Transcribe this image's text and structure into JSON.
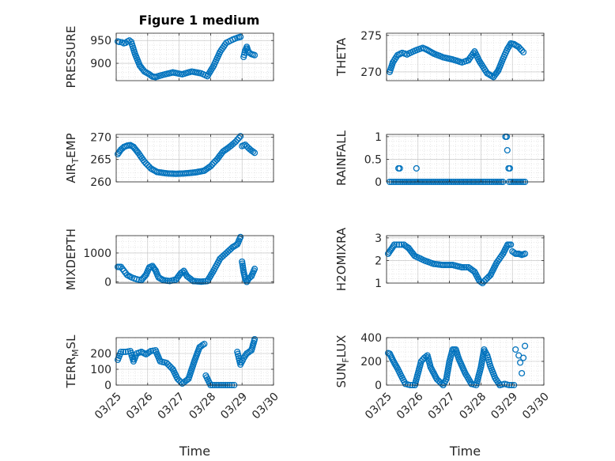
{
  "figure": {
    "title": "Figure 1 medium",
    "marker_color": "#0072BD"
  },
  "chart_data": [
    {
      "type": "scatter",
      "ylabel": "PRESSURE",
      "xlabel": "",
      "xlim": [
        0,
        5
      ],
      "ylim": [
        862,
        966
      ],
      "yticks": [
        900,
        950
      ],
      "xtick_labels": [
        "03/25",
        "03/26",
        "03/27",
        "03/28",
        "03/29",
        "03/30"
      ],
      "show_xtick_labels": false,
      "grid": true,
      "segments": [
        {
          "x": [
            0.05,
            0.1,
            0.18,
            0.24,
            0.3,
            0.36,
            0.42,
            0.48
          ],
          "y": [
            948,
            947,
            946,
            944,
            945,
            948,
            950,
            947
          ]
        },
        {
          "x": [
            0.5,
            0.6,
            0.75,
            0.9,
            1.05,
            1.15,
            1.25
          ],
          "y": [
            942,
            920,
            895,
            882,
            876,
            871,
            870
          ]
        },
        {
          "x": [
            1.25,
            1.5,
            1.8,
            2.1,
            2.4,
            2.7,
            2.9
          ],
          "y": [
            870,
            875,
            880,
            876,
            882,
            878,
            872
          ]
        },
        {
          "x": [
            2.9,
            3.1,
            3.3,
            3.5,
            3.7,
            3.85,
            3.95
          ],
          "y": [
            872,
            895,
            925,
            945,
            952,
            956,
            958
          ]
        },
        {
          "x": [
            4.05,
            4.1,
            4.15,
            4.2,
            4.3,
            4.4
          ],
          "y": [
            914,
            928,
            936,
            925,
            920,
            918
          ]
        }
      ]
    },
    {
      "type": "scatter",
      "ylabel": "THETA",
      "xlabel": "",
      "xlim": [
        0,
        5
      ],
      "ylim": [
        268.8,
        275.3
      ],
      "yticks": [
        270,
        275
      ],
      "xtick_labels": [
        "03/25",
        "03/26",
        "03/27",
        "03/28",
        "03/29",
        "03/30"
      ],
      "show_xtick_labels": false,
      "grid": true,
      "segments": [
        {
          "x": [
            0.1,
            0.2,
            0.35,
            0.5,
            0.65
          ],
          "y": [
            270.0,
            271.3,
            272.3,
            272.6,
            272.4
          ]
        },
        {
          "x": [
            0.65,
            0.9,
            1.15,
            1.3,
            1.5
          ],
          "y": [
            272.4,
            272.9,
            273.3,
            273.0,
            272.5
          ]
        },
        {
          "x": [
            1.5,
            1.8,
            2.1,
            2.4,
            2.6
          ],
          "y": [
            272.5,
            272.0,
            271.7,
            271.3,
            271.6
          ]
        },
        {
          "x": [
            2.6,
            2.8,
            2.95,
            3.05,
            3.2,
            3.4,
            3.55
          ],
          "y": [
            271.6,
            272.8,
            271.5,
            270.8,
            269.8,
            269.3,
            270.2
          ]
        },
        {
          "x": [
            3.55,
            3.7,
            3.85,
            3.95,
            4.05,
            4.2,
            4.35
          ],
          "y": [
            270.2,
            271.8,
            273.2,
            273.9,
            273.8,
            273.4,
            272.7
          ]
        }
      ]
    },
    {
      "type": "scatter",
      "ylabel": "AIR_TEMP",
      "ylabel_main": "AIR",
      "ylabel_sub": "T",
      "ylabel_rest": "EMP",
      "xlabel": "",
      "xlim": [
        0,
        5
      ],
      "ylim": [
        260,
        270.6
      ],
      "yticks": [
        260,
        265,
        270
      ],
      "xtick_labels": [
        "03/25",
        "03/26",
        "03/27",
        "03/28",
        "03/29",
        "03/30"
      ],
      "show_xtick_labels": false,
      "grid": true,
      "segments": [
        {
          "x": [
            0.05,
            0.15,
            0.25,
            0.35,
            0.45,
            0.55
          ],
          "y": [
            266.2,
            267.2,
            267.8,
            268.1,
            268.2,
            267.8
          ]
        },
        {
          "x": [
            0.55,
            0.7,
            0.9,
            1.1,
            1.3
          ],
          "y": [
            267.8,
            266.5,
            264.5,
            263.0,
            262.2
          ]
        },
        {
          "x": [
            1.3,
            1.6,
            1.9,
            2.2,
            2.5,
            2.8
          ],
          "y": [
            262.2,
            261.9,
            261.8,
            261.9,
            262.1,
            262.5
          ]
        },
        {
          "x": [
            2.8,
            3.0,
            3.2,
            3.4,
            3.6,
            3.8,
            3.95
          ],
          "y": [
            262.5,
            263.5,
            265.0,
            266.8,
            267.8,
            269.0,
            270.2
          ]
        },
        {
          "x": [
            4.0,
            4.1,
            4.2,
            4.3,
            4.4
          ],
          "y": [
            268.0,
            268.3,
            267.6,
            267.0,
            266.5
          ]
        }
      ]
    },
    {
      "type": "scatter",
      "ylabel": "RAINFALL",
      "xlabel": "",
      "xlim": [
        0,
        5
      ],
      "ylim": [
        0,
        1.05
      ],
      "yticks": [
        0,
        0.5,
        1
      ],
      "xtick_labels": [
        "03/25",
        "03/26",
        "03/27",
        "03/28",
        "03/29",
        "03/30"
      ],
      "show_xtick_labels": false,
      "grid": true,
      "segments": [
        {
          "x": [
            0.1,
            0.5,
            1.0,
            1.5,
            2.0,
            2.5,
            3.0,
            3.4,
            3.7
          ],
          "y": [
            0,
            0,
            0,
            0,
            0,
            0,
            0,
            0,
            0
          ]
        },
        {
          "x": [
            3.9,
            4.15,
            4.4
          ],
          "y": [
            0,
            0,
            0
          ]
        }
      ],
      "points": [
        {
          "x": [
            0.38,
            0.42,
            0.95,
            3.78,
            3.82,
            3.84,
            3.88,
            3.92
          ],
          "y": [
            0.3,
            0.3,
            0.3,
            1.0,
            1.0,
            0.7,
            0.3,
            0.3
          ]
        }
      ]
    },
    {
      "type": "scatter",
      "ylabel": "MIXDEPTH",
      "xlabel": "",
      "xlim": [
        0,
        5
      ],
      "ylim": [
        -40,
        1600
      ],
      "yticks": [
        0,
        1000
      ],
      "xtick_labels": [
        "03/25",
        "03/26",
        "03/27",
        "03/28",
        "03/29",
        "03/30"
      ],
      "show_xtick_labels": false,
      "grid": true,
      "segments": [
        {
          "x": [
            0.05,
            0.15,
            0.25,
            0.35,
            0.5,
            0.65,
            0.8
          ],
          "y": [
            520,
            520,
            380,
            240,
            150,
            90,
            60
          ]
        },
        {
          "x": [
            0.8,
            0.95,
            1.05,
            1.15,
            1.25,
            1.35,
            1.5
          ],
          "y": [
            60,
            250,
            500,
            550,
            400,
            150,
            60
          ]
        },
        {
          "x": [
            1.5,
            1.7,
            1.9,
            2.05,
            2.15,
            2.25,
            2.45
          ],
          "y": [
            60,
            30,
            80,
            300,
            380,
            200,
            30
          ]
        },
        {
          "x": [
            2.45,
            2.7,
            2.9,
            3.1,
            3.3,
            3.5,
            3.7,
            3.85,
            3.95
          ],
          "y": [
            30,
            10,
            30,
            400,
            800,
            1000,
            1200,
            1300,
            1550
          ]
        },
        {
          "x": [
            4.0,
            4.05,
            4.1,
            4.15,
            4.2,
            4.3,
            4.4
          ],
          "y": [
            700,
            350,
            100,
            0,
            100,
            200,
            450
          ]
        }
      ]
    },
    {
      "type": "scatter",
      "ylabel": "H2OMIXRA",
      "xlabel": "",
      "xlim": [
        0,
        5
      ],
      "ylim": [
        1,
        3.1
      ],
      "yticks": [
        1,
        2,
        3
      ],
      "xtick_labels": [
        "03/25",
        "03/26",
        "03/27",
        "03/28",
        "03/29",
        "03/30"
      ],
      "show_xtick_labels": false,
      "grid": true,
      "segments": [
        {
          "x": [
            0.05,
            0.15,
            0.25,
            0.4,
            0.55,
            0.7
          ],
          "y": [
            2.3,
            2.5,
            2.7,
            2.7,
            2.7,
            2.55
          ]
        },
        {
          "x": [
            0.7,
            0.9,
            1.2,
            1.5,
            1.8,
            2.1,
            2.4
          ],
          "y": [
            2.55,
            2.2,
            2.0,
            1.85,
            1.8,
            1.8,
            1.7
          ]
        },
        {
          "x": [
            2.4,
            2.6,
            2.8,
            2.95,
            3.05,
            3.15,
            3.3
          ],
          "y": [
            1.7,
            1.7,
            1.5,
            1.1,
            1.0,
            1.15,
            1.35
          ]
        },
        {
          "x": [
            3.3,
            3.5,
            3.7,
            3.85,
            3.95
          ],
          "y": [
            1.35,
            1.9,
            2.3,
            2.7,
            2.7
          ]
        },
        {
          "x": [
            4.0,
            4.1,
            4.2,
            4.3,
            4.4
          ],
          "y": [
            2.4,
            2.3,
            2.3,
            2.25,
            2.3
          ]
        }
      ]
    },
    {
      "type": "scatter",
      "ylabel": "TERR_MSL",
      "ylabel_main": "TERR",
      "ylabel_sub": "M",
      "ylabel_rest": "SL",
      "xlabel": "Time",
      "xlim": [
        0,
        5
      ],
      "ylim": [
        0,
        300
      ],
      "yticks": [
        0,
        100,
        200
      ],
      "xtick_labels": [
        "03/25",
        "03/26",
        "03/27",
        "03/28",
        "03/29",
        "03/30"
      ],
      "show_xtick_labels": true,
      "grid": true,
      "segments": [
        {
          "x": [
            0.05,
            0.15,
            0.3,
            0.45,
            0.55,
            0.65,
            0.8
          ],
          "y": [
            160,
            210,
            210,
            215,
            150,
            200,
            210
          ]
        },
        {
          "x": [
            0.8,
            0.95,
            1.1,
            1.25,
            1.4,
            1.6,
            1.8
          ],
          "y": [
            210,
            195,
            215,
            220,
            150,
            140,
            100
          ]
        },
        {
          "x": [
            1.8,
            1.95,
            2.1,
            2.3,
            2.5,
            2.65,
            2.8
          ],
          "y": [
            100,
            40,
            10,
            40,
            160,
            240,
            260
          ]
        },
        {
          "x": [
            2.85,
            3.0,
            3.2,
            3.4,
            3.6,
            3.75
          ],
          "y": [
            60,
            0,
            0,
            0,
            0,
            0
          ]
        },
        {
          "x": [
            3.85,
            3.95,
            4.05,
            4.15,
            4.3,
            4.4
          ],
          "y": [
            210,
            130,
            170,
            200,
            220,
            290
          ]
        }
      ]
    },
    {
      "type": "scatter",
      "ylabel": "SUN_FLUX",
      "ylabel_main": "SUN",
      "ylabel_sub": "F",
      "ylabel_rest": "LUX",
      "xlabel": "Time",
      "xlim": [
        0,
        5
      ],
      "ylim": [
        0,
        400
      ],
      "yticks": [
        0,
        200,
        400
      ],
      "xtick_labels": [
        "03/25",
        "03/26",
        "03/27",
        "03/28",
        "03/29",
        "03/30"
      ],
      "show_xtick_labels": true,
      "grid": true,
      "segments": [
        {
          "x": [
            0.05,
            0.1,
            0.2,
            0.35,
            0.5,
            0.6,
            0.75,
            0.9
          ],
          "y": [
            270,
            265,
            210,
            140,
            60,
            10,
            0,
            0
          ]
        },
        {
          "x": [
            0.9,
            1.0,
            1.1,
            1.2,
            1.3,
            1.4,
            1.6,
            1.8
          ],
          "y": [
            0,
            100,
            200,
            230,
            250,
            150,
            50,
            0
          ]
        },
        {
          "x": [
            1.8,
            1.9,
            2.0,
            2.1,
            2.2,
            2.3,
            2.5,
            2.7
          ],
          "y": [
            0,
            50,
            200,
            300,
            300,
            220,
            100,
            10
          ]
        },
        {
          "x": [
            2.7,
            2.85,
            3.0,
            3.1,
            3.2,
            3.3,
            3.45,
            3.6
          ],
          "y": [
            10,
            0,
            150,
            300,
            250,
            160,
            60,
            0
          ]
        },
        {
          "x": [
            3.6,
            3.75,
            3.9,
            4.05
          ],
          "y": [
            0,
            10,
            0,
            0
          ]
        }
      ],
      "points": [
        {
          "x": [
            4.1,
            4.2,
            4.25,
            4.3,
            4.35,
            4.4
          ],
          "y": [
            300,
            250,
            190,
            100,
            230,
            330
          ]
        }
      ]
    }
  ]
}
